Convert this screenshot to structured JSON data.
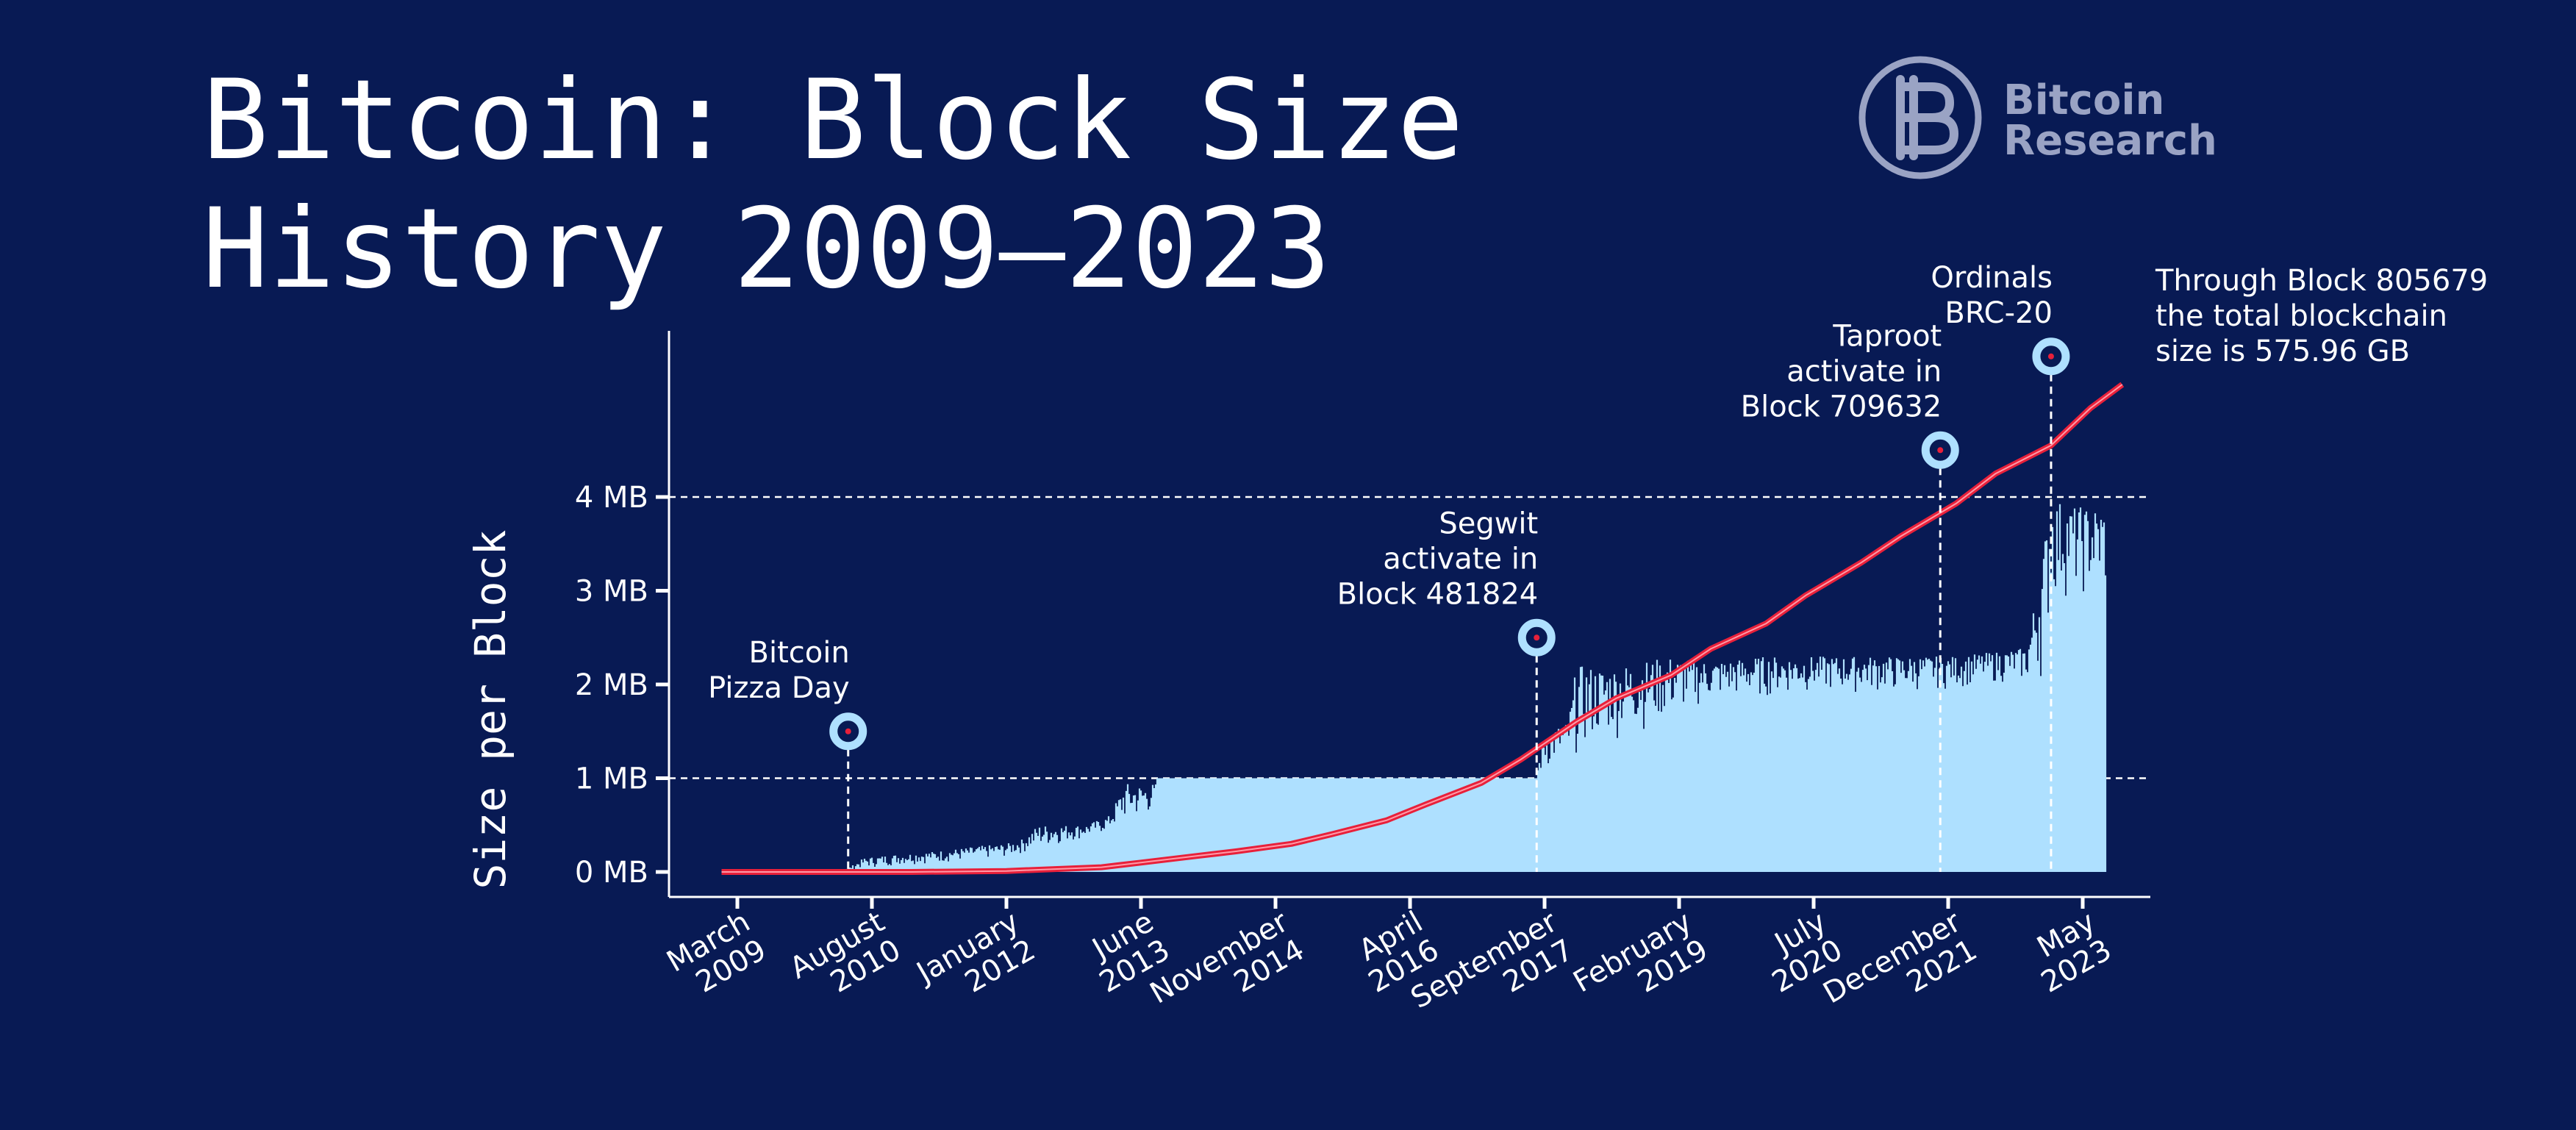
{
  "title_line1": "Bitcoin: Block Size",
  "title_line2": "History 2009–2023",
  "logo": {
    "line1": "Bitcoin",
    "line2": "Research",
    "icon": "bitcoin-research-logo-icon",
    "color": "#9aa3c4"
  },
  "note": {
    "line1": "Through Block 805679",
    "line2": "the total blockchain",
    "line3": "size is 575.96 GB"
  },
  "colors": {
    "background": "#081a54",
    "bars": "#aee0ff",
    "cumulative_line": "#e8203a",
    "marker_ring": "#aee0ff",
    "marker_dot": "#e8203a",
    "text": "#ffffff"
  },
  "chart_data": {
    "type": "bar",
    "title": "Bitcoin: Block Size History 2009–2023",
    "xlabel": "",
    "ylabel": "Size per Block",
    "x_range": [
      "2009-01",
      "2024-01"
    ],
    "ylim": [
      0,
      6
    ],
    "y_ticks": [
      {
        "value": 0,
        "label": "0 MB"
      },
      {
        "value": 1,
        "label": "1 MB"
      },
      {
        "value": 2,
        "label": "2 MB"
      },
      {
        "value": 3,
        "label": "3 MB"
      },
      {
        "value": 4,
        "label": "4 MB"
      }
    ],
    "x_ticks": [
      {
        "date": "2009-03",
        "line1": "March",
        "line2": "2009"
      },
      {
        "date": "2010-08",
        "line1": "August",
        "line2": "2010"
      },
      {
        "date": "2012-01",
        "line1": "January",
        "line2": "2012"
      },
      {
        "date": "2013-06",
        "line1": "June",
        "line2": "2013"
      },
      {
        "date": "2014-11",
        "line1": "November",
        "line2": "2014"
      },
      {
        "date": "2016-04",
        "line1": "April",
        "line2": "2016"
      },
      {
        "date": "2017-09",
        "line1": "September",
        "line2": "2017"
      },
      {
        "date": "2019-02",
        "line1": "February",
        "line2": "2019"
      },
      {
        "date": "2020-07",
        "line1": "July",
        "line2": "2020"
      },
      {
        "date": "2021-12",
        "line1": "December",
        "line2": "2021"
      },
      {
        "date": "2023-05",
        "line1": "May",
        "line2": "2023"
      }
    ],
    "gridlines": [
      1,
      4
    ],
    "block_size_max_mb": [
      [
        "2009-01",
        0.0
      ],
      [
        "2009-06",
        0.01
      ],
      [
        "2010-01",
        0.02
      ],
      [
        "2010-05",
        0.04
      ],
      [
        "2010-07",
        0.15
      ],
      [
        "2010-10",
        0.18
      ],
      [
        "2011-01",
        0.2
      ],
      [
        "2011-04",
        0.22
      ],
      [
        "2011-07",
        0.25
      ],
      [
        "2011-10",
        0.28
      ],
      [
        "2012-01",
        0.3
      ],
      [
        "2012-03",
        0.35
      ],
      [
        "2012-05",
        0.5
      ],
      [
        "2012-08",
        0.5
      ],
      [
        "2012-11",
        0.5
      ],
      [
        "2013-02",
        0.6
      ],
      [
        "2013-04",
        0.95
      ],
      [
        "2013-06",
        0.93
      ],
      [
        "2013-08",
        0.95
      ],
      [
        "2014-01",
        0.97
      ],
      [
        "2014-06",
        1.0
      ],
      [
        "2014-11",
        1.0
      ],
      [
        "2015-06",
        1.0
      ],
      [
        "2016-01",
        1.0
      ],
      [
        "2016-06",
        1.0
      ],
      [
        "2017-01",
        1.0
      ],
      [
        "2017-08",
        1.05
      ],
      [
        "2017-09",
        1.5
      ],
      [
        "2017-12",
        1.6
      ],
      [
        "2018-01",
        2.2
      ],
      [
        "2018-06",
        2.2
      ],
      [
        "2019-01",
        2.3
      ],
      [
        "2019-06",
        2.25
      ],
      [
        "2020-01",
        2.3
      ],
      [
        "2020-06",
        2.3
      ],
      [
        "2021-01",
        2.3
      ],
      [
        "2021-06",
        2.3
      ],
      [
        "2022-01",
        2.3
      ],
      [
        "2022-06",
        2.35
      ],
      [
        "2022-10",
        2.4
      ],
      [
        "2023-01",
        4.0
      ],
      [
        "2023-04",
        3.9
      ],
      [
        "2023-08",
        3.9
      ]
    ],
    "block_size_typical_mb": [
      [
        "2009-01",
        0.0
      ],
      [
        "2009-06",
        0.0
      ],
      [
        "2010-01",
        0.01
      ],
      [
        "2010-07",
        0.03
      ],
      [
        "2011-01",
        0.08
      ],
      [
        "2011-07",
        0.1
      ],
      [
        "2012-01",
        0.15
      ],
      [
        "2012-06",
        0.25
      ],
      [
        "2013-01",
        0.4
      ],
      [
        "2013-06",
        0.55
      ],
      [
        "2014-01",
        0.8
      ],
      [
        "2014-06",
        1.0
      ],
      [
        "2017-08",
        1.0
      ],
      [
        "2017-12",
        1.2
      ],
      [
        "2018-06",
        1.4
      ],
      [
        "2019-01",
        1.6
      ],
      [
        "2019-06",
        1.8
      ],
      [
        "2020-01",
        1.85
      ],
      [
        "2020-06",
        1.9
      ],
      [
        "2021-01",
        1.9
      ],
      [
        "2021-06",
        1.9
      ],
      [
        "2022-01",
        1.95
      ],
      [
        "2022-06",
        2.0
      ],
      [
        "2022-12",
        2.0
      ],
      [
        "2023-01",
        2.8
      ],
      [
        "2023-03",
        2.9
      ],
      [
        "2023-08",
        2.9
      ]
    ],
    "series": [
      {
        "type": "line",
        "points": [
          [
            "2009-01",
            0.0
          ],
          [
            "2011-01",
            0.0
          ],
          [
            "2012-01",
            0.01
          ],
          [
            "2013-01",
            0.05
          ],
          [
            "2013-06",
            0.1
          ],
          [
            "2014-01",
            0.17
          ],
          [
            "2014-06",
            0.22
          ],
          [
            "2015-01",
            0.3
          ],
          [
            "2015-06",
            0.4
          ],
          [
            "2016-01",
            0.55
          ],
          [
            "2016-06",
            0.72
          ],
          [
            "2017-01",
            0.95
          ],
          [
            "2017-06",
            1.2
          ],
          [
            "2018-01",
            1.6
          ],
          [
            "2018-06",
            1.85
          ],
          [
            "2019-01",
            2.1
          ],
          [
            "2019-06",
            2.38
          ],
          [
            "2020-01",
            2.65
          ],
          [
            "2020-06",
            2.95
          ],
          [
            "2021-01",
            3.3
          ],
          [
            "2021-06",
            3.58
          ],
          [
            "2022-01",
            3.93
          ],
          [
            "2022-06",
            4.25
          ],
          [
            "2023-01",
            4.55
          ],
          [
            "2023-06",
            4.95
          ],
          [
            "2023-10",
            5.2
          ]
        ]
      }
    ],
    "annotations": [
      {
        "date": "2010-05",
        "y": 1.5,
        "lines": [
          "Bitcoin",
          "Pizza Day"
        ]
      },
      {
        "date": "2017-08",
        "y": 2.5,
        "lines": [
          "Segwit",
          "activate in",
          "Block 481824"
        ]
      },
      {
        "date": "2021-11",
        "y": 4.5,
        "lines": [
          "Taproot",
          "activate in",
          "Block 709632"
        ]
      },
      {
        "date": "2023-01",
        "y": 5.5,
        "lines": [
          "Ordinals",
          "BRC-20"
        ]
      }
    ]
  }
}
